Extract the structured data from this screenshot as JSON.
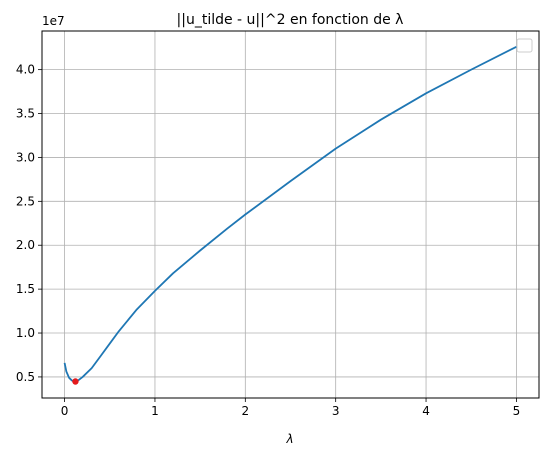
{
  "chart_data": {
    "type": "line",
    "title": "||u_tilde - u||^2 en fonction de λ",
    "xlabel": "λ",
    "ylabel": "",
    "y_offset_label": "1e7",
    "xlim": [
      -0.25,
      5.25
    ],
    "ylim": [
      0.26,
      4.44
    ],
    "xticks": [
      0,
      1,
      2,
      3,
      4,
      5
    ],
    "xtick_labels": [
      "0",
      "1",
      "2",
      "3",
      "4",
      "5"
    ],
    "yticks": [
      0.5,
      1.0,
      1.5,
      2.0,
      2.5,
      3.0,
      3.5,
      4.0
    ],
    "ytick_labels": [
      "0.5",
      "1.0",
      "1.5",
      "2.0",
      "2.5",
      "3.0",
      "3.5",
      "4.0"
    ],
    "grid": true,
    "legend": {
      "placement": "top-right",
      "entries": []
    },
    "series": [
      {
        "color": "#1f77b4",
        "x": [
          0,
          0.02,
          0.05,
          0.08,
          0.1,
          0.12,
          0.15,
          0.2,
          0.3,
          0.4,
          0.5,
          0.6,
          0.8,
          1.0,
          1.2,
          1.5,
          1.8,
          2.0,
          2.5,
          3.0,
          3.5,
          4.0,
          4.5,
          5.0
        ],
        "y": [
          0.66,
          0.56,
          0.49,
          0.46,
          0.45,
          0.448,
          0.46,
          0.5,
          0.6,
          0.74,
          0.88,
          1.02,
          1.27,
          1.48,
          1.68,
          1.94,
          2.19,
          2.35,
          2.73,
          3.1,
          3.43,
          3.73,
          4.0,
          4.26
        ]
      }
    ],
    "markers": [
      {
        "x": 0.12,
        "y": 0.448,
        "color": "#e41a1c"
      }
    ]
  }
}
